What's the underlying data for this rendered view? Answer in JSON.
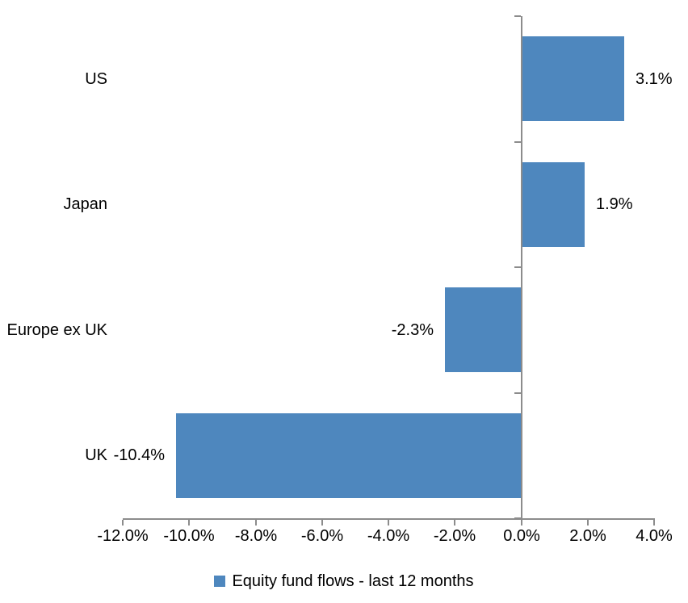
{
  "chart_data": {
    "type": "bar",
    "orientation": "horizontal",
    "title": "",
    "categories": [
      "US",
      "Japan",
      "Europe ex UK",
      "UK"
    ],
    "series": [
      {
        "name": "Equity fund flows - last 12 months",
        "values": [
          3.1,
          1.9,
          -2.3,
          -10.4
        ],
        "value_labels": [
          "3.1%",
          "1.9%",
          "-2.3%",
          "-10.4%"
        ]
      }
    ],
    "x_axis": {
      "min": -12.0,
      "max": 4.0,
      "tick_step": 2.0,
      "tick_values": [
        -12,
        -10,
        -8,
        -6,
        -4,
        -2,
        0,
        2,
        4
      ],
      "tick_labels": [
        "-12.0%",
        "-10.0%",
        "-8.0%",
        "-6.0%",
        "-4.0%",
        "-2.0%",
        "0.0%",
        "2.0%",
        "4.0%"
      ]
    },
    "legend": {
      "label": "Equity fund flows - last 12 months",
      "position": "bottom-center"
    },
    "gridlines": false,
    "value_labels_position": "outside-end",
    "colors": {
      "bar": "#4E87BE",
      "axis": "#8C8C8C",
      "text": "#000000",
      "background": "#FFFFFF"
    }
  }
}
